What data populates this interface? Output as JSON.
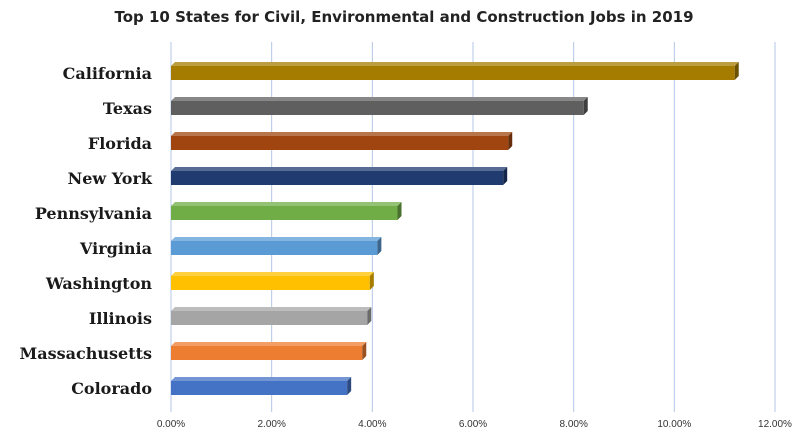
{
  "chart_data": {
    "type": "bar",
    "orientation": "horizontal",
    "title": "Top 10 States for Civil, Environmental  and Construction  Jobs in  2019",
    "categories": [
      "California",
      "Texas",
      "Florida",
      "New York",
      "Pennsylvania",
      "Virginia",
      "Washington",
      "Illinois",
      "Massachusetts",
      "Colorado"
    ],
    "values": [
      11.2,
      8.2,
      6.7,
      6.6,
      4.5,
      4.1,
      3.95,
      3.9,
      3.8,
      3.5
    ],
    "colors": [
      "#A67C00",
      "#5F5F5F",
      "#A0450F",
      "#1F3B70",
      "#70AD47",
      "#5B9BD5",
      "#FFC000",
      "#A5A5A5",
      "#ED7D31",
      "#4472C4"
    ],
    "xlim": [
      0,
      12
    ],
    "ticks": [
      0,
      2,
      4,
      6,
      8,
      10,
      12
    ],
    "tick_labels": [
      "0.00%",
      "2.00%",
      "4.00%",
      "6.00%",
      "8.00%",
      "10.00%",
      "12.00%"
    ],
    "grid": true,
    "legend": "none"
  }
}
